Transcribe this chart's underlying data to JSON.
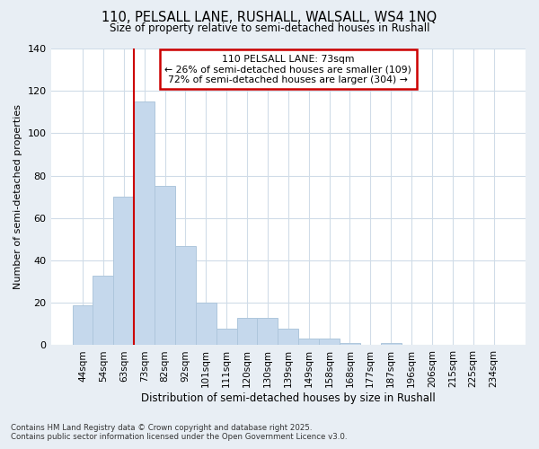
{
  "title_line1": "110, PELSALL LANE, RUSHALL, WALSALL, WS4 1NQ",
  "title_line2": "Size of property relative to semi-detached houses in Rushall",
  "xlabel": "Distribution of semi-detached houses by size in Rushall",
  "ylabel": "Number of semi-detached properties",
  "categories": [
    "44sqm",
    "54sqm",
    "63sqm",
    "73sqm",
    "82sqm",
    "92sqm",
    "101sqm",
    "111sqm",
    "120sqm",
    "130sqm",
    "139sqm",
    "149sqm",
    "158sqm",
    "168sqm",
    "177sqm",
    "187sqm",
    "196sqm",
    "206sqm",
    "215sqm",
    "225sqm",
    "234sqm"
  ],
  "values": [
    19,
    33,
    70,
    115,
    75,
    47,
    20,
    8,
    13,
    13,
    8,
    3,
    3,
    1,
    0,
    1,
    0,
    0,
    0,
    0,
    0
  ],
  "bar_color": "#c5d8ec",
  "bar_edge_color": "#aec6dc",
  "highlight_bar_index": 3,
  "annotation_title": "110 PELSALL LANE: 73sqm",
  "annotation_line1": "← 26% of semi-detached houses are smaller (109)",
  "annotation_line2": "72% of semi-detached houses are larger (304) →",
  "annotation_box_color": "#cc0000",
  "plot_bg_color": "#ffffff",
  "fig_bg_color": "#e8eef4",
  "grid_color": "#d0dce8",
  "footer_line1": "Contains HM Land Registry data © Crown copyright and database right 2025.",
  "footer_line2": "Contains public sector information licensed under the Open Government Licence v3.0.",
  "ylim": [
    0,
    140
  ],
  "yticks": [
    0,
    20,
    40,
    60,
    80,
    100,
    120,
    140
  ]
}
